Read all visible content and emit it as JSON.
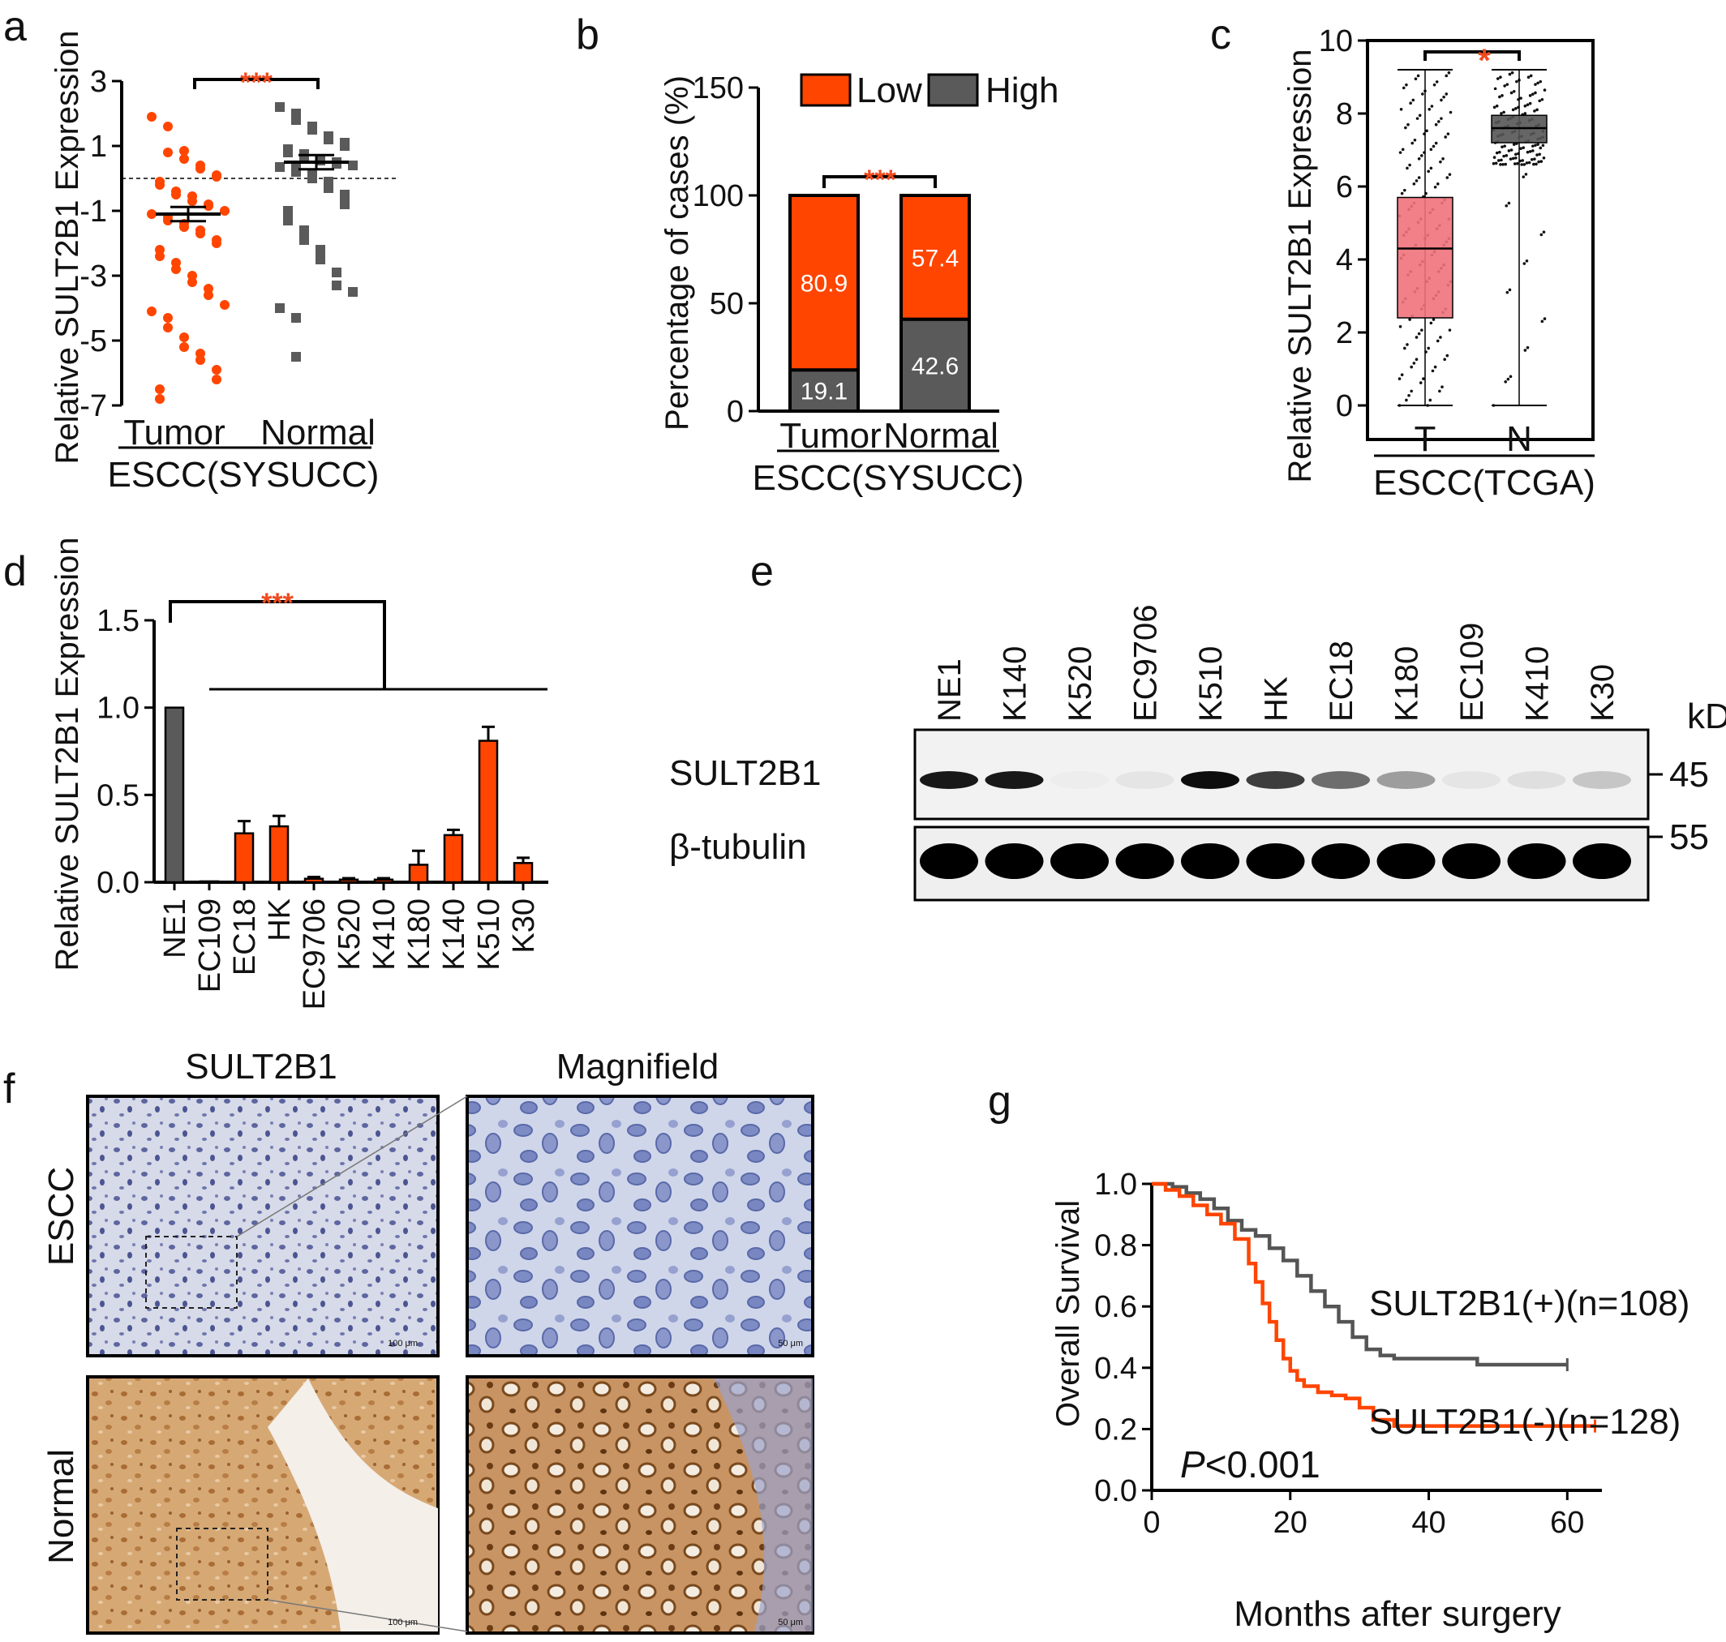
{
  "colors": {
    "orange": "#ff4500",
    "gray": "#5a5a5a",
    "pink": "#f0727b",
    "darkgray": "#555555",
    "black": "#000000"
  },
  "panels": {
    "a": {
      "letter": "a",
      "ylabel": "Relative SULT2B1 Expression",
      "group_label": "ESCC(SYSUCC)",
      "significance": "***"
    },
    "b": {
      "letter": "b",
      "ylabel": "Percentage of cases (%)",
      "group_label": "ESCC(SYSUCC)",
      "significance": "***",
      "legend_low": "Low",
      "legend_high": "High"
    },
    "c": {
      "letter": "c",
      "ylabel": "Relative SULT2B1 Expression",
      "group_label": "ESCC(TCGA)",
      "significance": "*"
    },
    "d": {
      "letter": "d",
      "ylabel": "Relative SULT2B1 Expression",
      "significance": "***"
    },
    "e": {
      "letter": "e",
      "unit_label": "kDa",
      "lanes": [
        "NE1",
        "K140",
        "K520",
        "EC9706",
        "K510",
        "HK",
        "EC18",
        "K180",
        "EC109",
        "K410",
        "K30"
      ],
      "rows": [
        {
          "name": "SULT2B1",
          "kda": "45",
          "intensity": [
            0.9,
            0.9,
            0.02,
            0.05,
            0.95,
            0.75,
            0.55,
            0.35,
            0.05,
            0.08,
            0.18
          ]
        },
        {
          "name": "β-tubulin",
          "kda": "55",
          "intensity": [
            1,
            1,
            1,
            1,
            1,
            1,
            1,
            1,
            1,
            1,
            1
          ]
        }
      ]
    },
    "f": {
      "letter": "f",
      "col_labels": [
        "SULT2B1",
        "Magnifield"
      ],
      "row_labels": [
        "ESCC",
        "Normal"
      ],
      "scale_bars": [
        "100 μm",
        "50 μm",
        "100 μm",
        "50 μm"
      ]
    },
    "g": {
      "letter": "g",
      "ylabel": "Overall Survival",
      "xlabel": "Months after surgery",
      "p_prefix": "P",
      "p_suffix": "<0.001",
      "legend_pos": "SULT2B1(+)(n=108)",
      "legend_neg": "SULT2B1(-)(n=128)"
    }
  },
  "chart_data": [
    {
      "panel": "a",
      "type": "scatter",
      "categories": [
        "Tumor",
        "Normal"
      ],
      "ylabel": "Relative SULT2B1 Expression",
      "ylim": [
        -7,
        3
      ],
      "yticks": [
        "3",
        "1",
        "-1",
        "-3",
        "-5",
        "-7"
      ],
      "yticks_values": [
        3,
        1,
        -1,
        -3,
        -5,
        -7
      ],
      "reference_line": 0,
      "series": [
        {
          "name": "Tumor",
          "mean": -1.1,
          "sem": 0.22,
          "values": [
            1.9,
            1.6,
            0.8,
            0.85,
            0.6,
            0.4,
            0.3,
            0.1,
            0.05,
            -0.1,
            -0.2,
            -0.4,
            -0.5,
            -0.55,
            -0.7,
            -0.8,
            -0.85,
            -1.0,
            -1.1,
            -1.2,
            -1.3,
            -1.4,
            -1.5,
            -1.6,
            -1.7,
            -1.9,
            -2.0,
            -2.2,
            -2.4,
            -2.6,
            -2.8,
            -3.0,
            -3.2,
            -3.4,
            -3.6,
            -3.9,
            -4.1,
            -4.3,
            -4.6,
            -4.9,
            -5.2,
            -5.4,
            -5.6,
            -5.9,
            -6.2,
            -6.5,
            -6.8
          ]
        },
        {
          "name": "Normal",
          "mean": 0.5,
          "sem": 0.22,
          "values": [
            2.2,
            2.0,
            1.8,
            1.6,
            1.5,
            1.3,
            1.2,
            1.1,
            1.0,
            0.9,
            0.8,
            0.75,
            0.7,
            0.6,
            0.55,
            0.5,
            0.45,
            0.4,
            0.35,
            0.3,
            0.2,
            0.1,
            0.0,
            -0.1,
            -0.3,
            -0.5,
            -0.8,
            -1.0,
            -1.3,
            -1.6,
            -1.9,
            -2.2,
            -2.5,
            -2.9,
            -3.3,
            -3.5,
            -4.0,
            -4.3,
            -5.5
          ]
        }
      ]
    },
    {
      "panel": "b",
      "type": "bar",
      "categories": [
        "Tumor",
        "Normal"
      ],
      "ylabel": "Percentage of cases (%)",
      "ylim": [
        0,
        150
      ],
      "yticks": [
        "150",
        "100",
        "50",
        "0"
      ],
      "yticks_values": [
        150,
        100,
        50,
        0
      ],
      "series": [
        {
          "name": "High",
          "values": [
            19.1,
            42.6
          ],
          "labels": [
            "19.1",
            "42.6"
          ]
        },
        {
          "name": "Low",
          "values": [
            80.9,
            57.4
          ],
          "labels": [
            "80.9",
            "57.4"
          ]
        }
      ]
    },
    {
      "panel": "c",
      "type": "box",
      "categories": [
        "T",
        "N"
      ],
      "ylabel": "Relative SULT2B1 Expression",
      "ylim": [
        0,
        10
      ],
      "yticks": [
        "10",
        "8",
        "6",
        "4",
        "2",
        "0"
      ],
      "yticks_values": [
        10,
        8,
        6,
        4,
        2,
        0
      ],
      "series": [
        {
          "name": "T",
          "min": 0.0,
          "q1": 2.4,
          "median": 4.3,
          "q3": 5.7,
          "max": 9.2
        },
        {
          "name": "N",
          "min": 0.0,
          "q1": 7.2,
          "median": 7.6,
          "q3": 7.95,
          "max": 9.2
        }
      ]
    },
    {
      "panel": "d",
      "type": "bar",
      "categories": [
        "NE1",
        "EC109",
        "EC18",
        "HK",
        "EC9706",
        "K520",
        "K410",
        "K180",
        "K140",
        "K510",
        "K30"
      ],
      "ylabel": "Relative SULT2B1 Expression",
      "ylim": [
        0,
        1.5
      ],
      "yticks": [
        "1.5",
        "1.0",
        "0.5",
        "0.0"
      ],
      "yticks_values": [
        1.5,
        1.0,
        0.5,
        0.0
      ],
      "values": [
        1.0,
        0.005,
        0.28,
        0.32,
        0.02,
        0.015,
        0.015,
        0.1,
        0.27,
        0.81,
        0.11
      ],
      "errors": [
        0,
        0,
        0.07,
        0.06,
        0.01,
        0.008,
        0.008,
        0.08,
        0.03,
        0.08,
        0.03
      ]
    },
    {
      "panel": "g",
      "type": "line",
      "xlabel": "Months after surgery",
      "ylabel": "Overall Survival",
      "xlim": [
        0,
        65
      ],
      "ylim": [
        0,
        1.0
      ],
      "xticks": [
        "0",
        "20",
        "40",
        "60"
      ],
      "xticks_values": [
        0,
        20,
        40,
        60
      ],
      "yticks": [
        "1.0",
        "0.8",
        "0.6",
        "0.4",
        "0.2",
        "0.0"
      ],
      "yticks_values": [
        1.0,
        0.8,
        0.6,
        0.4,
        0.2,
        0.0
      ],
      "series": [
        {
          "name": "SULT2B1(+)(n=108)",
          "x": [
            0,
            3,
            5,
            7,
            9,
            11,
            13,
            15,
            17,
            19,
            21,
            23,
            25,
            27,
            29,
            31,
            33,
            35,
            40,
            45,
            47,
            50,
            55,
            60
          ],
          "y": [
            1.0,
            0.99,
            0.97,
            0.95,
            0.92,
            0.88,
            0.85,
            0.83,
            0.79,
            0.75,
            0.7,
            0.65,
            0.6,
            0.55,
            0.5,
            0.46,
            0.44,
            0.43,
            0.43,
            0.43,
            0.41,
            0.41,
            0.41,
            0.41
          ]
        },
        {
          "name": "SULT2B1(-)(n=128)",
          "x": [
            0,
            2,
            4,
            6,
            8,
            10,
            12,
            14,
            15,
            16,
            17,
            18,
            19,
            20,
            21,
            22,
            24,
            26,
            28,
            30,
            32,
            35,
            40,
            50,
            60,
            64
          ],
          "y": [
            1.0,
            0.98,
            0.96,
            0.93,
            0.9,
            0.87,
            0.82,
            0.74,
            0.68,
            0.61,
            0.55,
            0.49,
            0.43,
            0.39,
            0.36,
            0.34,
            0.32,
            0.31,
            0.3,
            0.27,
            0.23,
            0.21,
            0.21,
            0.21,
            0.21,
            0.21
          ]
        }
      ]
    }
  ]
}
